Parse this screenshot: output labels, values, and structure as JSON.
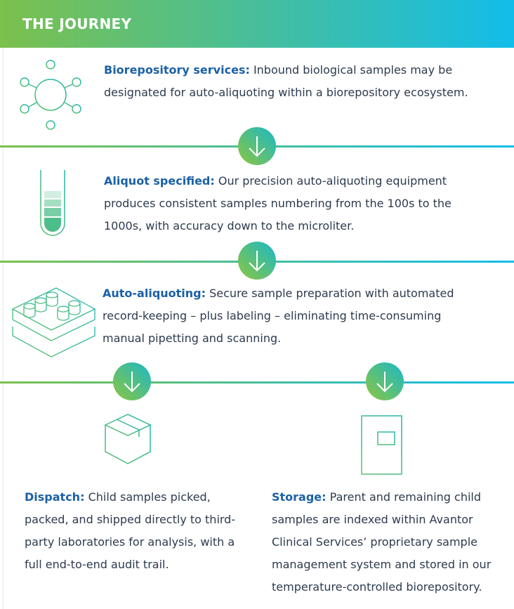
{
  "header": {
    "title": "THE JOURNEY"
  },
  "steps": [
    {
      "title": "Biorepository services:",
      "text": "Inbound biological samples may be designated for auto-aliquoting within a biorepository ecosystem."
    },
    {
      "title": "Aliquot specified:",
      "text": "Our precision auto-aliquoting equipment produces consistent samples numbering from the 100s to the 1000s, with accuracy down to the microliter."
    },
    {
      "title": "Auto-aliquoting:",
      "text": "Secure sample preparation with automated record-keeping – plus labeling – eliminating time-consuming manual pipetting and scanning."
    }
  ],
  "branches": [
    {
      "title": "Dispatch:",
      "text": "Child samples picked, packed, and shipped directly to third-party laboratories for analysis, with a full end-to-end audit trail."
    },
    {
      "title": "Storage:",
      "text": "Parent and remaining child samples are indexed within Avantor Clinical Services’ proprietary sample management system and stored in our temperature-controlled biorepository."
    }
  ]
}
